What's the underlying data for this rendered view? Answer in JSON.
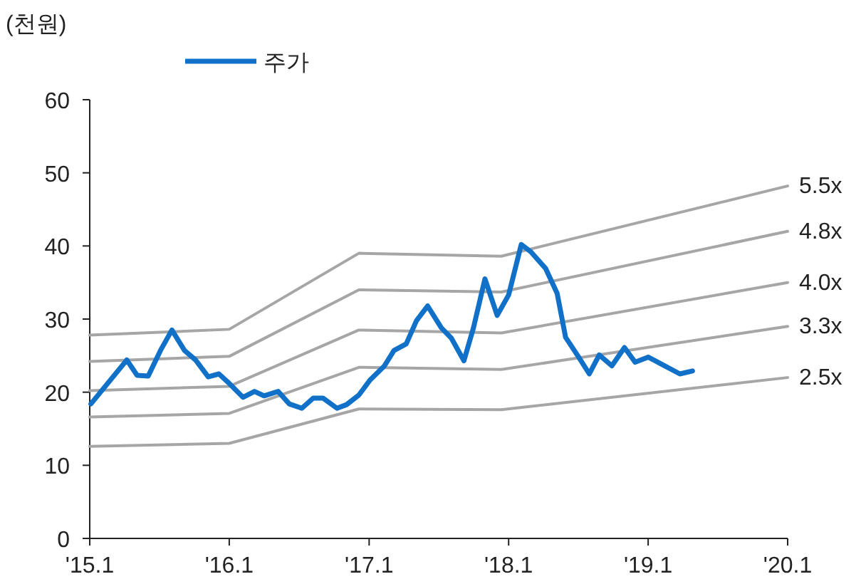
{
  "chart_data": {
    "type": "line",
    "ylabel": "(천원)",
    "legend": "top left",
    "grid": false,
    "marker": "none",
    "line_style": "solid",
    "xlim": [
      "2015-01",
      "2020-01"
    ],
    "xticks": [
      {
        "value": "2015-01",
        "label": "'15.1"
      },
      {
        "value": "2016-01",
        "label": "'16.1"
      },
      {
        "value": "2017-01",
        "label": "'17.1"
      },
      {
        "value": "2018-01",
        "label": "'18.1"
      },
      {
        "value": "2019-01",
        "label": "'19.1"
      },
      {
        "value": "2020-01",
        "label": "'20.1"
      }
    ],
    "ylim": [
      0,
      60
    ],
    "yticks": [
      0,
      10,
      20,
      30,
      40,
      50,
      60
    ],
    "series": [
      {
        "name": "5.5x",
        "color": "#a6a6a6",
        "x": [
          "2015-01",
          "2016-01",
          "2016-12-05",
          "2017-12-13",
          "2020-01"
        ],
        "values": [
          27.8,
          28.6,
          39.0,
          38.6,
          48.2
        ]
      },
      {
        "name": "4.8x",
        "color": "#a6a6a6",
        "x": [
          "2015-01",
          "2016-01",
          "2016-12-05",
          "2017-12-13",
          "2020-01"
        ],
        "values": [
          24.2,
          24.9,
          34.0,
          33.7,
          42.0
        ]
      },
      {
        "name": "4.0x",
        "color": "#a6a6a6",
        "x": [
          "2015-01",
          "2016-01",
          "2016-12-05",
          "2017-12-13",
          "2020-01"
        ],
        "values": [
          20.2,
          20.8,
          28.5,
          28.1,
          35.0
        ]
      },
      {
        "name": "3.3x",
        "color": "#a6a6a6",
        "x": [
          "2015-01",
          "2016-01",
          "2016-12-05",
          "2017-12-13",
          "2020-01"
        ],
        "values": [
          16.6,
          17.1,
          23.4,
          23.1,
          29.0
        ]
      },
      {
        "name": "2.5x",
        "color": "#a6a6a6",
        "x": [
          "2015-01",
          "2016-01",
          "2016-12-05",
          "2017-12-13",
          "2020-01"
        ],
        "values": [
          12.6,
          13.0,
          17.7,
          17.6,
          22.0
        ]
      },
      {
        "name": "주가",
        "color": "#1170c8",
        "x": [
          "2015-01-04",
          "2015-04-08",
          "2015-05-05",
          "2015-06-03",
          "2015-07-05",
          "2015-08-04",
          "2015-09-06",
          "2015-10-05",
          "2015-11-07",
          "2015-12-05",
          "2015-12-28",
          "2016-02-06",
          "2016-03-07",
          "2016-04-01",
          "2016-05-08",
          "2016-06-06",
          "2016-07-09",
          "2016-08-08",
          "2016-09-02",
          "2016-10-09",
          "2016-11-03",
          "2016-12-05",
          "2017-01-04",
          "2017-02-10",
          "2017-03-07",
          "2017-04-08",
          "2017-05-05",
          "2017-06-03",
          "2017-07-09",
          "2017-08-04",
          "2017-09-06",
          "2017-10-01",
          "2017-10-31",
          "2017-12-02",
          "2018-01-01",
          "2018-02-03",
          "2018-02-28",
          "2018-04-08",
          "2018-05-08",
          "2018-05-30",
          "2018-07-02",
          "2018-07-31",
          "2018-08-26",
          "2018-09-28",
          "2018-10-31",
          "2018-11-28",
          "2019-01-01",
          "2019-02-06",
          "2019-03-25",
          "2019-04-27"
        ],
        "values": [
          18.4,
          24.4,
          22.3,
          22.2,
          25.7,
          28.5,
          25.7,
          24.4,
          22.1,
          22.5,
          21.4,
          19.3,
          20.1,
          19.5,
          20.1,
          18.4,
          17.8,
          19.2,
          19.2,
          17.8,
          18.3,
          19.6,
          21.7,
          23.6,
          25.7,
          26.6,
          29.8,
          31.8,
          28.8,
          27.4,
          24.3,
          28.8,
          35.5,
          30.5,
          33.3,
          40.2,
          39.2,
          36.9,
          33.5,
          27.5,
          24.9,
          22.5,
          25.1,
          23.6,
          26.1,
          24.1,
          24.8,
          23.8,
          22.5,
          22.9
        ]
      }
    ]
  }
}
